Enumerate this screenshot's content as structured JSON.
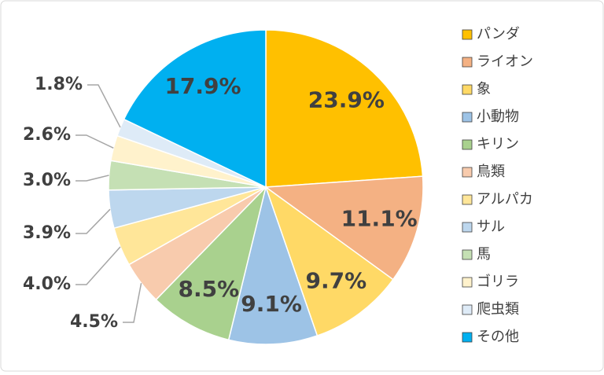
{
  "chart_data": {
    "type": "pie",
    "categories": [
      "パンダ",
      "ライオン",
      "象",
      "小動物",
      "キリン",
      "鳥類",
      "アルパカ",
      "サル",
      "馬",
      "ゴリラ",
      "爬虫類",
      "その他"
    ],
    "values": [
      23.9,
      11.1,
      9.7,
      9.1,
      8.5,
      4.5,
      4.0,
      3.9,
      3.0,
      2.6,
      1.8,
      17.9
    ],
    "value_labels": [
      "23.9%",
      "11.1%",
      "9.7%",
      "9.1%",
      "8.5%",
      "4.5%",
      "4.0%",
      "3.9%",
      "3.0%",
      "2.6%",
      "1.8%",
      "17.9%"
    ],
    "colors": [
      "#FFC000",
      "#F4B183",
      "#FFD966",
      "#9DC3E6",
      "#A9D18E",
      "#F8CBAD",
      "#FFE699",
      "#BDD7EE",
      "#C5E0B4",
      "#FFF2CC",
      "#DEEBF7",
      "#00B0F0"
    ],
    "legend": "right"
  }
}
